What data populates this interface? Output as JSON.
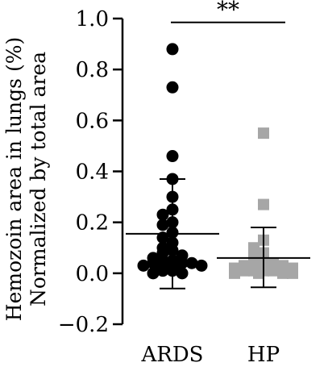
{
  "chart_data": {
    "type": "scatter",
    "ylabel": "Hemozoin area in lungs (%)",
    "ylabel2": "Normalized by total area",
    "ylim": [
      -0.2,
      1.0
    ],
    "yticks": [
      -0.2,
      0.0,
      0.2,
      0.4,
      0.6,
      0.8,
      1.0
    ],
    "ytick_labels": [
      "−0.2",
      "0.0",
      "0.2",
      "0.4",
      "0.6",
      "0.8",
      "1.0"
    ],
    "categories": [
      "ARDS",
      "HP"
    ],
    "significance": "**",
    "series": [
      {
        "name": "ARDS",
        "marker": "circle",
        "color": "#000000",
        "mean": 0.155,
        "sd_upper": 0.37,
        "sd_lower": -0.06,
        "values": [
          0.88,
          0.73,
          0.46,
          0.37,
          0.3,
          0.25,
          0.23,
          0.2,
          0.19,
          0.16,
          0.14,
          0.12,
          0.1,
          0.09,
          0.08,
          0.07,
          0.06,
          0.05,
          0.05,
          0.04,
          0.04,
          0.04,
          0.03,
          0.03,
          0.03,
          0.02,
          0.02,
          0.01,
          0.01,
          0.0,
          0.0
        ]
      },
      {
        "name": "HP",
        "marker": "square",
        "color": "#a6a6a6",
        "mean": 0.06,
        "sd_upper": 0.18,
        "sd_lower": -0.055,
        "values": [
          0.55,
          0.27,
          0.13,
          0.1,
          0.08,
          0.06,
          0.05,
          0.04,
          0.04,
          0.03,
          0.03,
          0.02,
          0.02,
          0.02,
          0.01,
          0.01,
          0.01,
          0.01,
          0.0,
          0.0,
          0.0,
          0.0
        ]
      }
    ]
  }
}
